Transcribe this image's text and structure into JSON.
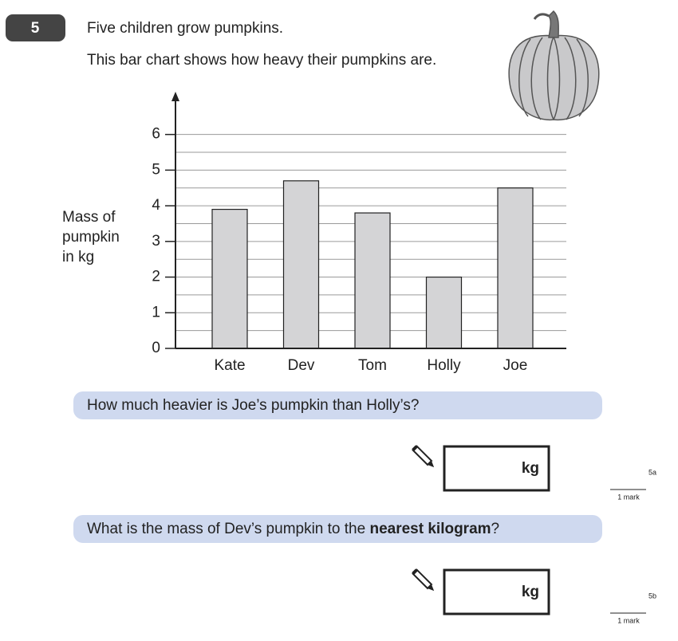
{
  "question_number": "5",
  "intro": [
    "Five children grow pumpkins.",
    "This bar chart shows how heavy their pumpkins are."
  ],
  "chart_data": {
    "type": "bar",
    "y_label": [
      "Mass of",
      "pumpkin",
      "in kg"
    ],
    "categories": [
      "Kate",
      "Dev",
      "Tom",
      "Holly",
      "Joe"
    ],
    "values": [
      3.9,
      4.7,
      3.8,
      2,
      4.5
    ],
    "color": "#d4d4d6",
    "ylim": [
      0,
      7.2
    ],
    "yticks": [
      0,
      1,
      2,
      3,
      4,
      5,
      6
    ],
    "minor_grid": [
      0.5,
      1.5,
      2.5,
      3.5,
      4.5,
      5.5
    ],
    "grid": true
  },
  "question_a": {
    "text": [
      "How much heavier is Joe’s pumpkin than Holly’s?"
    ],
    "unit": "kg",
    "code": "5a",
    "marks": "1 mark"
  },
  "question_b": {
    "text": [
      "What is the mass of Dev’s pumpkin to the ",
      "nearest kilogram",
      "?"
    ],
    "unit": "kg",
    "code": "5b",
    "marks": "1 mark"
  }
}
